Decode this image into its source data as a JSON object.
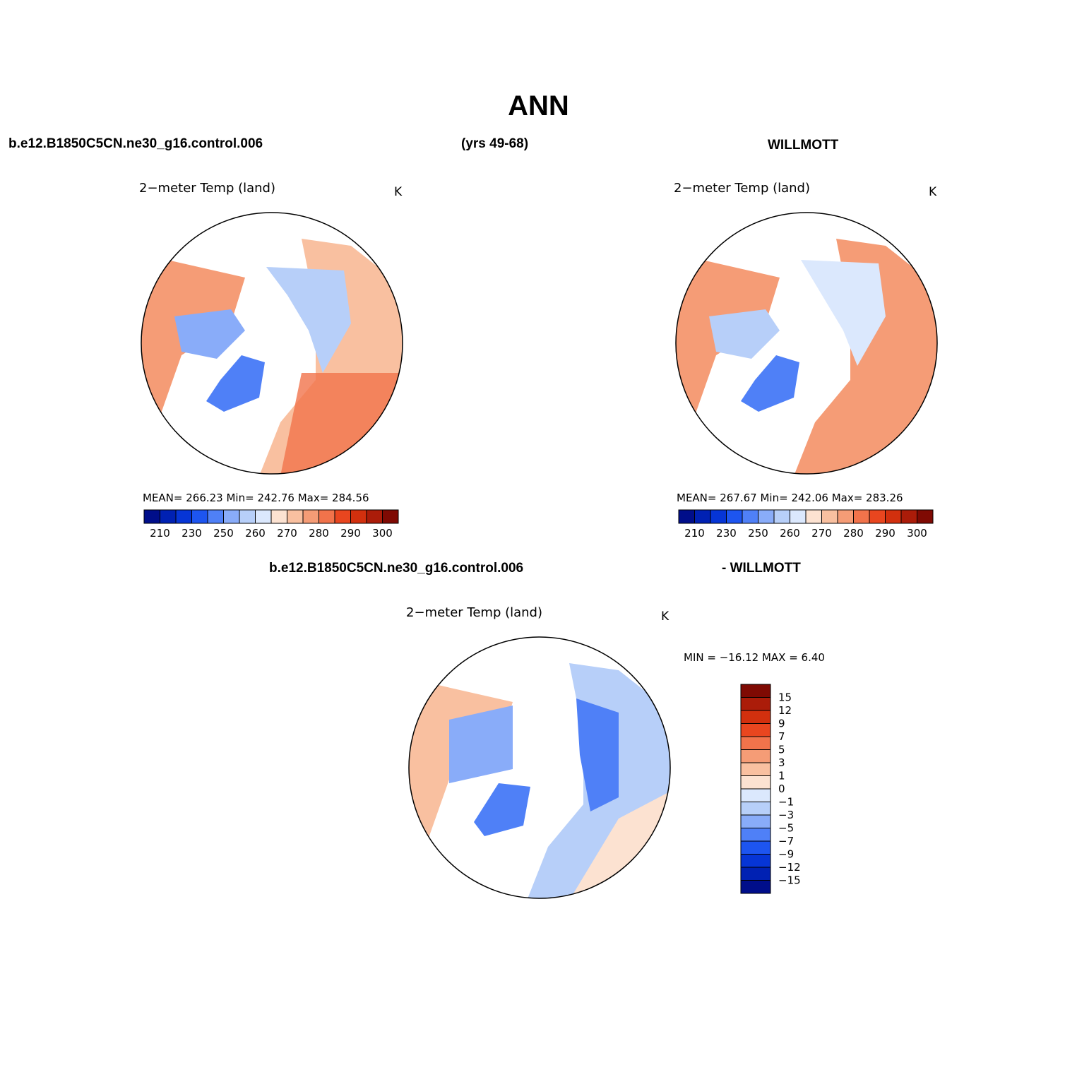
{
  "title": "ANN",
  "top_headers": {
    "left": "b.e12.B1850C5CN.ne30_g16.control.006",
    "center": "(yrs 49-68)",
    "right": "WILLMOTT"
  },
  "bottom_headers": {
    "left": "b.e12.B1850C5CN.ne30_g16.control.006",
    "right": "- WILLMOTT"
  },
  "panels": [
    {
      "id": "model",
      "title": "2−meter Temp (land)",
      "units": "K",
      "stats": "MEAN= 266.23   Min= 242.76   Max= 284.56"
    },
    {
      "id": "obs",
      "title": "2−meter Temp (land)",
      "units": "K",
      "stats": "MEAN= 267.67   Min= 242.06   Max= 283.26"
    },
    {
      "id": "diff",
      "title": "2−meter Temp (land)",
      "units": "K",
      "stats": "MIN = −16.12  MAX =    6.40"
    }
  ],
  "abs_colorbar": {
    "colors": [
      "#000e8a",
      "#0021b3",
      "#0635d6",
      "#1d55f0",
      "#4f80f7",
      "#89acf9",
      "#b7cff9",
      "#dbe8fd",
      "#fce2d1",
      "#f9c0a0",
      "#f59c76",
      "#f1734b",
      "#e9461f",
      "#d2300e",
      "#ab1c09",
      "#7f0a03"
    ],
    "labels": [
      "210",
      "230",
      "250",
      "260",
      "270",
      "280",
      "290",
      "300"
    ]
  },
  "diff_colorbar": {
    "colors_top_to_bottom": [
      "#7f0a03",
      "#ab1c09",
      "#d2300e",
      "#e9461f",
      "#f1734b",
      "#f59c76",
      "#f9c0a0",
      "#fce2d1",
      "#dbe8fd",
      "#b7cff9",
      "#89acf9",
      "#4f80f7",
      "#1d55f0",
      "#0635d6",
      "#0021b3",
      "#000e8a"
    ],
    "labels_top_to_bottom": [
      "15",
      "12",
      "9",
      "7",
      "5",
      "3",
      "1",
      "0",
      "−1",
      "−3",
      "−5",
      "−7",
      "−9",
      "−12",
      "−15"
    ]
  }
}
